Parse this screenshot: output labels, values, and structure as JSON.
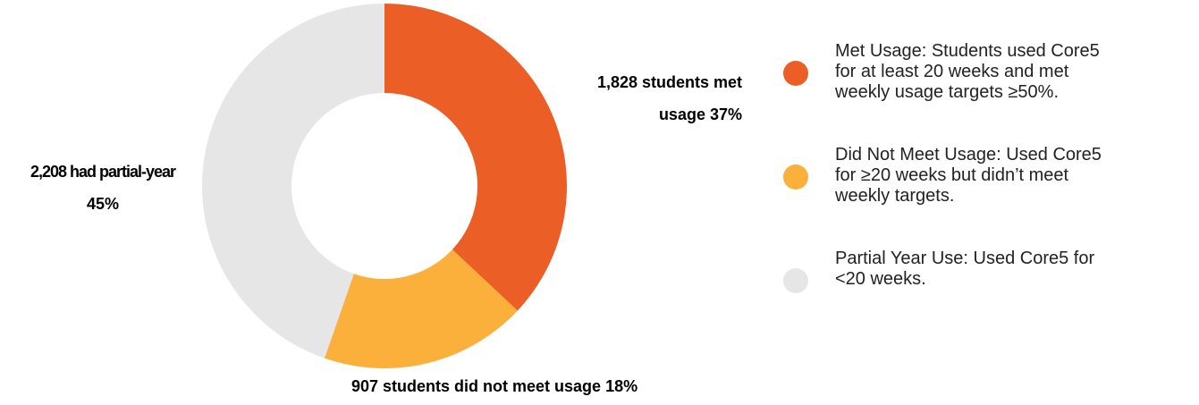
{
  "chart_data": {
    "type": "pie",
    "variant": "donut",
    "categories": [
      "Met Usage",
      "Did Not Meet Usage",
      "Partial Year Use"
    ],
    "values": [
      1828,
      907,
      2208
    ],
    "percentages": [
      37,
      18,
      45
    ],
    "colors": [
      "#EB5E26",
      "#FBB03B",
      "#E6E6E6"
    ],
    "slice_labels": [
      {
        "line1": "1,828 students met",
        "line2": "usage  37%"
      },
      {
        "line1": "907 students did not meet usage  18%",
        "line2": ""
      },
      {
        "line1": "2,208 had partial-year",
        "line2": "45%"
      }
    ],
    "legend": [
      {
        "text": "Met Usage: Students used Core5\nfor at least 20 weeks and met\nweekly usage targets ≥50%.",
        "color": "#EB5E26"
      },
      {
        "text": "Did Not Meet Usage: Used Core5\nfor ≥20 weeks but didn’t meet\nweekly  targets.",
        "color": "#FBB03B"
      },
      {
        "text": "Partial Year Use: Used Core5 for\n<20  weeks.",
        "color": "#E6E6E6"
      }
    ],
    "legend_position": "right"
  }
}
